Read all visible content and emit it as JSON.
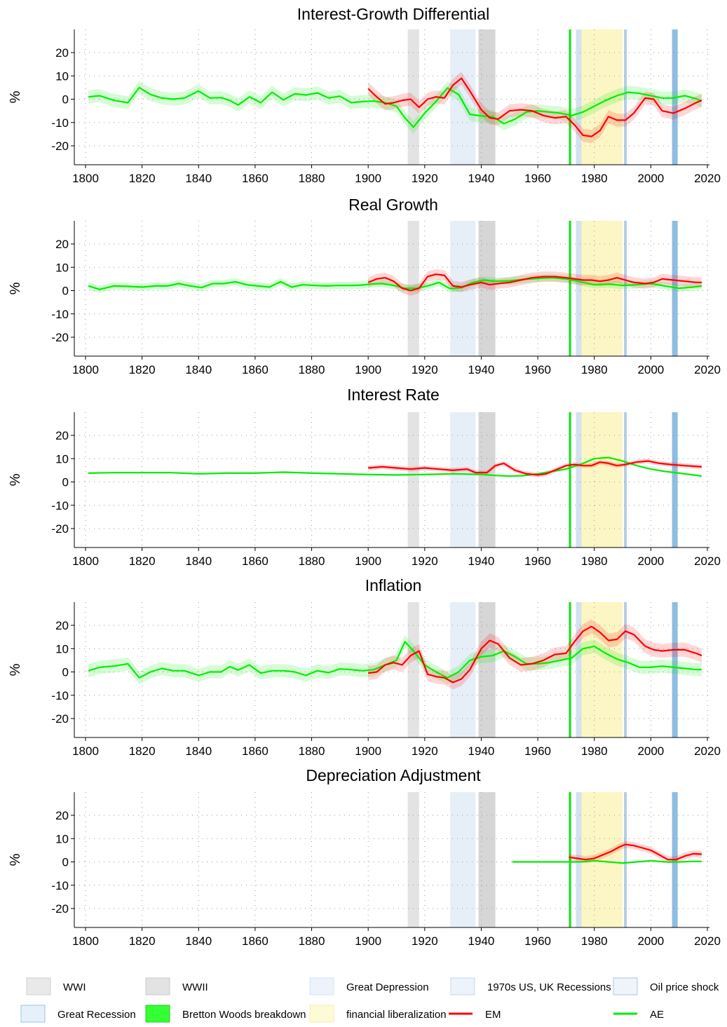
{
  "ylabel": "%",
  "x_ticks": [
    1800,
    1820,
    1840,
    1860,
    1880,
    1900,
    1920,
    1940,
    1960,
    1980,
    2000,
    2020
  ],
  "y_ticks": [
    20,
    10,
    0,
    -10,
    -20
  ],
  "xlim": [
    1800,
    2020
  ],
  "ylim": [
    -25,
    25
  ],
  "events": [
    {
      "name": "WWI",
      "start": 1914,
      "end": 1918,
      "color": "#e0e0e0",
      "opacity": 0.9
    },
    {
      "name": "Great Depression",
      "start": 1929,
      "end": 1938,
      "color": "#dde9f5",
      "opacity": 0.75
    },
    {
      "name": "WWII",
      "start": 1939,
      "end": 1945,
      "color": "#cfcfcf",
      "opacity": 0.85
    },
    {
      "name": "Bretton Woods breakdown",
      "start": 1971,
      "end": 1971.8,
      "color": "#20dd20",
      "opacity": 1
    },
    {
      "name": "1970s US, UK Recessions",
      "start": 1973.5,
      "end": 1975.5,
      "color": "#cfdeee",
      "opacity": 0.9
    },
    {
      "name": "financial liberalization",
      "start": 1975.5,
      "end": 1990,
      "color": "#fbf6c0",
      "opacity": 0.95
    },
    {
      "name": "Oil price shock",
      "start": 1990.5,
      "end": 1991.5,
      "color": "#b5cde6",
      "opacity": 1
    },
    {
      "name": "Great Recession",
      "start": 2007.5,
      "end": 2009.5,
      "color": "#8fbde2",
      "opacity": 1
    }
  ],
  "legend": {
    "items": [
      {
        "label": "WWI",
        "kind": "box",
        "fill": "#e9e9e9",
        "border": "#d0d0d0"
      },
      {
        "label": "WWII",
        "kind": "box",
        "fill": "#e3e3e3",
        "border": "#c9c9c9"
      },
      {
        "label": "Great Depression",
        "kind": "box",
        "fill": "#edf3fa",
        "border": "#d6e3f0"
      },
      {
        "label": "1970s US, UK Recessions",
        "kind": "box",
        "fill": "#edf3fa",
        "border": "#c8d9ea"
      },
      {
        "label": "Oil price shock",
        "kind": "box",
        "fill": "#eef4fa",
        "border": "#a9c7e4"
      },
      {
        "label": "Great Recession",
        "kind": "box",
        "fill": "#e6f0f9",
        "border": "#9cc3e6"
      },
      {
        "label": "Bretton Woods breakdown",
        "kind": "box",
        "fill": "#33ff33",
        "border": "#22cc22"
      },
      {
        "label": "financial liberalization",
        "kind": "box",
        "fill": "#fdfbd6",
        "border": "#f0ecb0"
      },
      {
        "label": "EM",
        "kind": "line",
        "color": "#ff0000"
      },
      {
        "label": "AE",
        "kind": "line",
        "color": "#00ee00"
      }
    ]
  },
  "chart_data": [
    {
      "type": "line",
      "title": "Interest-Growth Differential",
      "ylabel": "%",
      "xlim": [
        1800,
        2020
      ],
      "ylim": [
        -25,
        25
      ],
      "series": [
        {
          "name": "AE",
          "color": "#00ee00",
          "band": 2.8,
          "x": [
            1801,
            1805,
            1810,
            1815,
            1819,
            1823,
            1827,
            1831,
            1835,
            1840,
            1844,
            1848,
            1851,
            1854,
            1858,
            1862,
            1866,
            1870,
            1874,
            1878,
            1882,
            1886,
            1890,
            1894,
            1898,
            1902,
            1906,
            1910,
            1913,
            1916,
            1920,
            1924,
            1928,
            1932,
            1936,
            1940,
            1944,
            1948,
            1952,
            1956,
            1960,
            1964,
            1968,
            1972,
            1976,
            1980,
            1984,
            1988,
            1992,
            1996,
            2000,
            2004,
            2008,
            2012,
            2016,
            2018
          ],
          "y": [
            1,
            1.5,
            -0.5,
            -1.5,
            5,
            2,
            0.5,
            0,
            0.5,
            3.5,
            0.5,
            0.7,
            -0.5,
            -2.5,
            1,
            -1.5,
            3,
            -0.3,
            2.3,
            1.8,
            2.7,
            0.5,
            1.3,
            -1.5,
            -1,
            -0.8,
            -1.5,
            -3,
            -8,
            -12,
            -6,
            -1,
            4.8,
            2,
            -6.5,
            -7.2,
            -7.5,
            -10.5,
            -8.5,
            -5.5,
            -5,
            -5.5,
            -6,
            -7,
            -5.5,
            -3,
            -0.5,
            1.5,
            3,
            2.5,
            1.5,
            0.5,
            0.5,
            1.5,
            0.2,
            -0.8
          ]
        },
        {
          "name": "EM",
          "color": "#ff0000",
          "band": 2.8,
          "x": [
            1900,
            1903,
            1906,
            1909,
            1912,
            1915,
            1918,
            1921,
            1924,
            1927,
            1930,
            1933,
            1936,
            1940,
            1943,
            1946,
            1950,
            1954,
            1958,
            1962,
            1966,
            1970,
            1973,
            1976,
            1979,
            1982,
            1985,
            1988,
            1991,
            1994,
            1998,
            2001,
            2004,
            2008,
            2012,
            2016,
            2018
          ],
          "y": [
            4.5,
            1,
            -2,
            -1.5,
            -0.5,
            0,
            -3.5,
            0,
            1,
            0.5,
            6,
            9,
            3.5,
            -4.5,
            -8,
            -8.5,
            -5,
            -4.5,
            -5,
            -7,
            -8,
            -7.5,
            -11,
            -15.5,
            -16,
            -13.5,
            -7.5,
            -9,
            -9,
            -6,
            0.5,
            0,
            -5,
            -6,
            -4,
            -1.5,
            -0.5
          ]
        }
      ]
    },
    {
      "type": "line",
      "title": "Real Growth",
      "ylabel": "%",
      "xlim": [
        1800,
        2020
      ],
      "ylim": [
        -25,
        25
      ],
      "series": [
        {
          "name": "AE",
          "color": "#00ee00",
          "band": 1.6,
          "x": [
            1801,
            1805,
            1810,
            1815,
            1820,
            1825,
            1829,
            1833,
            1837,
            1841,
            1845,
            1849,
            1853,
            1857,
            1861,
            1865,
            1869,
            1873,
            1877,
            1881,
            1885,
            1889,
            1893,
            1897,
            1901,
            1905,
            1909,
            1913,
            1917,
            1921,
            1925,
            1929,
            1933,
            1937,
            1941,
            1945,
            1950,
            1955,
            1960,
            1965,
            1970,
            1975,
            1980,
            1985,
            1990,
            1995,
            2000,
            2005,
            2010,
            2015,
            2018
          ],
          "y": [
            2,
            0.5,
            2,
            1.8,
            1.5,
            2,
            2,
            3,
            2,
            1.3,
            3,
            3,
            3.8,
            2.5,
            2,
            1.5,
            3.8,
            1.5,
            2.5,
            2.2,
            2,
            2.2,
            2.2,
            2.3,
            2.8,
            3,
            2.2,
            1,
            1,
            2,
            3.5,
            0.8,
            1.2,
            3.5,
            4.5,
            4,
            4.2,
            4.8,
            5.2,
            5.5,
            5,
            3.8,
            2.5,
            2.8,
            2.2,
            2.5,
            3,
            2,
            1,
            1.5,
            2
          ]
        },
        {
          "name": "EM",
          "color": "#ff0000",
          "band": 2.2,
          "x": [
            1900,
            1903,
            1906,
            1909,
            1912,
            1915,
            1918,
            1921,
            1924,
            1927,
            1930,
            1933,
            1936,
            1940,
            1943,
            1946,
            1950,
            1954,
            1958,
            1962,
            1966,
            1970,
            1973,
            1976,
            1979,
            1982,
            1985,
            1988,
            1991,
            1994,
            1998,
            2001,
            2004,
            2008,
            2012,
            2016,
            2018
          ],
          "y": [
            3.5,
            5,
            5.5,
            4,
            1,
            0,
            1,
            6,
            7,
            6.5,
            2,
            1.5,
            2.5,
            3.5,
            2.5,
            3,
            3.5,
            4.5,
            5.5,
            6,
            6,
            5.5,
            5,
            4.5,
            4.5,
            4,
            4.5,
            5.5,
            4.5,
            3.5,
            3,
            3.5,
            5,
            4.5,
            4,
            3.5,
            3.5
          ]
        }
      ]
    },
    {
      "type": "line",
      "title": "Interest Rate",
      "ylabel": "%",
      "xlim": [
        1800,
        2020
      ],
      "ylim": [
        -25,
        25
      ],
      "series": [
        {
          "name": "AE",
          "color": "#00ee00",
          "band": 0.3,
          "x": [
            1801,
            1810,
            1820,
            1830,
            1840,
            1850,
            1860,
            1870,
            1880,
            1890,
            1900,
            1910,
            1920,
            1930,
            1940,
            1945,
            1950,
            1955,
            1960,
            1965,
            1970,
            1975,
            1980,
            1985,
            1990,
            1995,
            2000,
            2005,
            2010,
            2015,
            2018
          ],
          "y": [
            3.8,
            4,
            4,
            4,
            3.5,
            3.8,
            3.8,
            4.2,
            3.8,
            3.5,
            3.2,
            3,
            3.2,
            3.5,
            3.2,
            2.8,
            2.5,
            2.7,
            3.5,
            4.5,
            5.5,
            7.5,
            10,
            10.5,
            9,
            7,
            5.5,
            4.5,
            3.8,
            3,
            2.5
          ]
        },
        {
          "name": "EM",
          "color": "#ff0000",
          "band": 1.0,
          "x": [
            1900,
            1905,
            1910,
            1915,
            1920,
            1925,
            1930,
            1935,
            1938,
            1942,
            1945,
            1948,
            1952,
            1956,
            1960,
            1963,
            1967,
            1970,
            1973,
            1976,
            1979,
            1982,
            1985,
            1988,
            1991,
            1995,
            1999,
            2003,
            2007,
            2012,
            2018
          ],
          "y": [
            6,
            6.5,
            6,
            5.5,
            6,
            5.5,
            5,
            5.5,
            4,
            4,
            7,
            8,
            5,
            3.5,
            3,
            3.5,
            5.5,
            7,
            7.5,
            7,
            7,
            8.5,
            8,
            7,
            7.5,
            8.5,
            9,
            8,
            7.5,
            7,
            6.5
          ]
        }
      ]
    },
    {
      "type": "line",
      "title": "Inflation",
      "ylabel": "%",
      "xlim": [
        1800,
        2020
      ],
      "ylim": [
        -25,
        25
      ],
      "series": [
        {
          "name": "AE",
          "color": "#00ee00",
          "band": 2.8,
          "x": [
            1801,
            1805,
            1810,
            1815,
            1819,
            1823,
            1827,
            1831,
            1835,
            1840,
            1844,
            1848,
            1851,
            1854,
            1858,
            1862,
            1866,
            1870,
            1874,
            1878,
            1882,
            1886,
            1890,
            1894,
            1898,
            1902,
            1906,
            1910,
            1913,
            1916,
            1920,
            1924,
            1928,
            1932,
            1936,
            1940,
            1944,
            1948,
            1952,
            1956,
            1960,
            1964,
            1968,
            1972,
            1976,
            1980,
            1984,
            1988,
            1992,
            1996,
            2000,
            2004,
            2008,
            2012,
            2016,
            2018
          ],
          "y": [
            0.5,
            2,
            2.5,
            3.5,
            -2.5,
            0,
            1.5,
            0.5,
            0.5,
            -1.5,
            0,
            0,
            2.3,
            0.8,
            3,
            -0.5,
            0.5,
            0.5,
            0,
            -1.5,
            0.5,
            -0.3,
            1.3,
            1,
            0.5,
            1,
            3,
            5,
            13,
            9,
            3,
            0,
            -2.5,
            0,
            5,
            6.5,
            7,
            9,
            6.5,
            3.5,
            3.5,
            4,
            5,
            6,
            10,
            11,
            8,
            5.5,
            4,
            2,
            2,
            2.5,
            2,
            1.5,
            1,
            1
          ]
        },
        {
          "name": "EM",
          "color": "#ff0000",
          "band": 3.0,
          "x": [
            1900,
            1903,
            1906,
            1909,
            1912,
            1915,
            1918,
            1921,
            1924,
            1927,
            1930,
            1933,
            1936,
            1940,
            1943,
            1946,
            1950,
            1954,
            1958,
            1962,
            1966,
            1970,
            1973,
            1976,
            1979,
            1982,
            1985,
            1988,
            1991,
            1994,
            1998,
            2001,
            2004,
            2008,
            2012,
            2016,
            2018
          ],
          "y": [
            -0.5,
            0,
            3,
            4,
            3,
            7,
            9,
            -1,
            -2,
            -2.5,
            -4.5,
            -3,
            1,
            10,
            13.5,
            12,
            6,
            3,
            3.5,
            5,
            7.5,
            8,
            13,
            17.5,
            19.5,
            17,
            13.5,
            14,
            17.5,
            16,
            11,
            9.5,
            9,
            9.5,
            9.5,
            8,
            7
          ]
        }
      ]
    },
    {
      "type": "line",
      "title": "Depreciation Adjustment",
      "ylabel": "%",
      "xlim": [
        1800,
        2020
      ],
      "ylim": [
        -25,
        25
      ],
      "series": [
        {
          "name": "AE",
          "color": "#00ee00",
          "band": 0.3,
          "x": [
            1951,
            1960,
            1970,
            1975,
            1980,
            1985,
            1990,
            1995,
            2000,
            2005,
            2010,
            2015,
            2018
          ],
          "y": [
            0,
            0,
            0,
            0,
            0.5,
            0,
            -0.5,
            0,
            0.5,
            0,
            0,
            0.2,
            0.2
          ]
        },
        {
          "name": "EM",
          "color": "#ff0000",
          "band": 1.5,
          "x": [
            1971,
            1974,
            1977,
            1980,
            1983,
            1986,
            1989,
            1991,
            1994,
            1997,
            2000,
            2003,
            2006,
            2009,
            2012,
            2015,
            2018
          ],
          "y": [
            2,
            1.5,
            1,
            1.5,
            3,
            4.5,
            6.5,
            7.5,
            7,
            6,
            5,
            3,
            1,
            1,
            2.5,
            3.5,
            3.3
          ]
        }
      ]
    }
  ]
}
